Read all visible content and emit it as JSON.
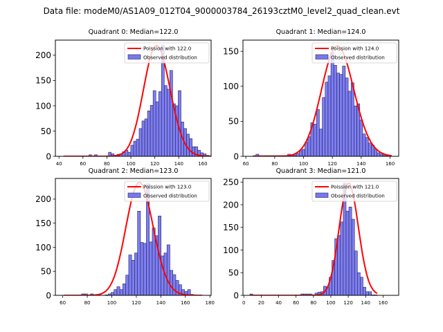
{
  "chart_data": {
    "suptitle": "Data file: modeM0/AS1A09_012T04_9000003784_26193cztM0_level2_quad_clean.evt",
    "panels": [
      {
        "type": "bar",
        "title": "Quadrant 0: Median=122.0",
        "xlim": [
          37,
          167
        ],
        "ylim": [
          0,
          230
        ],
        "xticks": [
          40,
          60,
          80,
          100,
          120,
          140,
          160
        ],
        "yticks": [
          0,
          50,
          100,
          150,
          200
        ],
        "legend": {
          "position": "top-right",
          "line_label": "Poission with 122.0",
          "bar_label": "Observed distribution"
        },
        "hist": {
          "start": 44,
          "bin_width": 2.33,
          "counts": [
            1,
            1,
            1,
            1,
            1,
            1,
            1,
            1,
            1,
            3,
            1,
            3,
            1,
            1,
            1,
            1,
            8,
            5,
            2,
            4,
            5,
            9,
            12,
            8,
            22,
            30,
            34,
            55,
            70,
            74,
            90,
            101,
            130,
            108,
            128,
            220,
            140,
            133,
            170,
            104,
            100,
            130,
            68,
            55,
            44,
            35,
            19,
            19,
            12,
            7,
            5,
            2,
            1,
            1
          ]
        },
        "poisson": {
          "mean": 122.0,
          "peak": 220
        }
      },
      {
        "type": "bar",
        "title": "Quadrant 1: Median=124.0",
        "xlim": [
          58,
          166
        ],
        "ylim": [
          0,
          166
        ],
        "xticks": [
          60,
          80,
          100,
          120,
          140,
          160
        ],
        "yticks": [
          0,
          50,
          100,
          150
        ],
        "legend": {
          "position": "top-right",
          "line_label": "Poission with 124.0",
          "bar_label": "Observed distribution"
        },
        "hist": {
          "start": 65,
          "bin_width": 2.0,
          "counts": [
            1,
            3,
            1,
            1,
            1,
            1,
            1,
            1,
            1,
            1,
            1,
            1,
            3,
            2,
            2,
            4,
            8,
            10,
            20,
            28,
            48,
            46,
            67,
            39,
            84,
            106,
            115,
            148,
            130,
            119,
            117,
            129,
            112,
            93,
            105,
            72,
            75,
            52,
            32,
            27,
            19,
            16,
            10,
            5,
            3,
            2,
            1,
            1
          ]
        },
        "poisson": {
          "mean": 124.0,
          "peak": 158
        }
      },
      {
        "type": "bar",
        "title": "Quadrant 2: Median=123.0",
        "xlim": [
          54,
          181
        ],
        "ylim": [
          0,
          243
        ],
        "xticks": [
          60,
          80,
          100,
          120,
          140,
          160,
          180
        ],
        "yticks": [
          0,
          50,
          100,
          150,
          200
        ],
        "legend": {
          "position": "top-right",
          "line_label": "Poission with 123.0",
          "bar_label": "Observed distribution"
        },
        "hist": {
          "start": 61,
          "bin_width": 2.4,
          "counts": [
            0,
            0,
            0,
            0,
            0,
            0,
            3,
            3,
            0,
            3,
            0,
            0,
            0,
            0,
            1,
            3,
            6,
            12,
            18,
            12,
            24,
            42,
            84,
            73,
            88,
            175,
            110,
            108,
            232,
            111,
            140,
            124,
            165,
            82,
            88,
            105,
            52,
            43,
            31,
            22,
            12,
            8,
            12,
            2,
            0,
            0,
            0
          ]
        },
        "poisson": {
          "mean": 123.0,
          "peak": 235
        }
      },
      {
        "type": "bar",
        "title": "Quadrant 3: Median=121.0",
        "xlim": [
          -1,
          178
        ],
        "ylim": [
          0,
          258
        ],
        "xticks": [
          0,
          20,
          40,
          60,
          80,
          100,
          120,
          140,
          160
        ],
        "yticks": [
          0,
          50,
          100,
          150,
          200,
          250
        ],
        "legend": {
          "position": "top-right",
          "line_label": "Poission with 121.0",
          "bar_label": "Observed distribution"
        },
        "hist": {
          "start": 7,
          "bin_width": 3.25,
          "counts": [
            3,
            1,
            1,
            1,
            1,
            1,
            1,
            1,
            1,
            1,
            1,
            1,
            1,
            1,
            1,
            1,
            1,
            1,
            3,
            3,
            3,
            3,
            1,
            5,
            7,
            8,
            20,
            18,
            40,
            77,
            125,
            132,
            162,
            248,
            186,
            195,
            168,
            98,
            50,
            40,
            18,
            8,
            8,
            1,
            1
          ]
        },
        "poisson": {
          "mean": 121.0,
          "peak": 248
        }
      }
    ]
  },
  "colors": {
    "bar_fill": "#7777f0",
    "bar_edge": "#22225a",
    "line": "#ff0000"
  }
}
